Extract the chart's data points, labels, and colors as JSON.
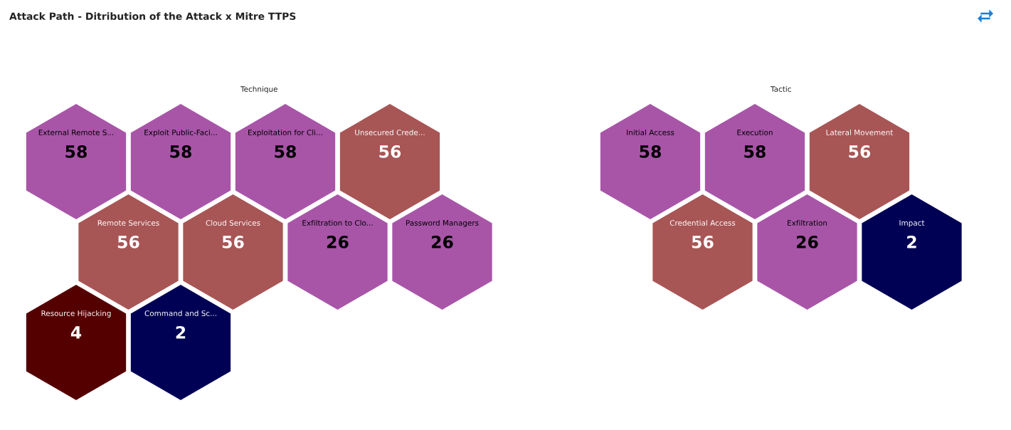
{
  "chart_data": [
    {
      "type": "other",
      "title": "Attack Path - Ditribution of the Attack x Mitre TTPS",
      "subtitle": "Technique",
      "data_labels": true,
      "categories": [
        "External Remote S...",
        "Exploit Public-Faci...",
        "Exploitation for Cli...",
        "Unsecured Crede...",
        "Remote Services",
        "Cloud Services",
        "Exfiltration to Clo...",
        "Password Managers",
        "Resource Hijacking",
        "Command and Sc..."
      ],
      "values": [
        58,
        58,
        58,
        56,
        56,
        56,
        26,
        26,
        4,
        2
      ],
      "colors": [
        "#a855a8",
        "#a855a8",
        "#a855a8",
        "#a85555",
        "#a85555",
        "#a85555",
        "#a855a8",
        "#a855a8",
        "#550000",
        "#000055"
      ]
    },
    {
      "type": "other",
      "subtitle": "Tactic",
      "data_labels": true,
      "categories": [
        "Initial Access",
        "Execution",
        "Lateral Movement",
        "Credential Access",
        "Exfiltration",
        "Impact"
      ],
      "values": [
        58,
        58,
        56,
        56,
        26,
        2
      ],
      "colors": [
        "#a855a8",
        "#a855a8",
        "#a85555",
        "#a85555",
        "#a855a8",
        "#000055"
      ]
    }
  ]
}
